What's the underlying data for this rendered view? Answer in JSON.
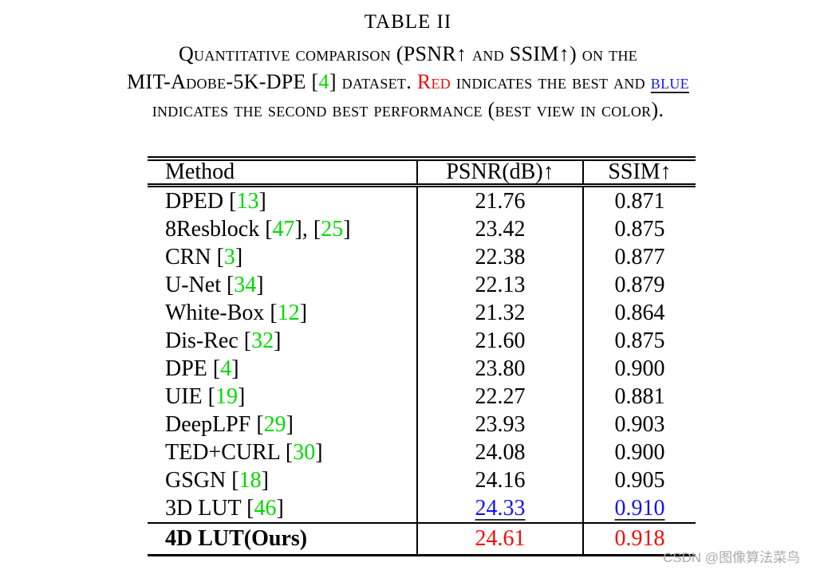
{
  "title": "TABLE II",
  "caption": {
    "lines": [
      [
        {
          "t": "Quantitative comparison (PSNR↑ and SSIM↑) on the"
        }
      ],
      [
        {
          "t": "MIT-Adobe-5K-DPE ["
        },
        {
          "t": "4",
          "s": "green"
        },
        {
          "t": "] dataset. "
        },
        {
          "t": "Red",
          "s": "red"
        },
        {
          "t": " indicates the best and "
        },
        {
          "t": "blue",
          "s": "blue"
        }
      ],
      [
        {
          "t": "indicates the second best performance (best view in color)."
        }
      ]
    ]
  },
  "table": {
    "headers": [
      "Method",
      "PSNR(dB)↑",
      "SSIM↑"
    ],
    "rows": [
      {
        "method": [
          {
            "t": "DPED ["
          },
          {
            "t": "13",
            "s": "cite"
          },
          {
            "t": "]"
          }
        ],
        "psnr": "21.76",
        "ssim": "0.871"
      },
      {
        "method": [
          {
            "t": "8Resblock ["
          },
          {
            "t": "47",
            "s": "cite"
          },
          {
            "t": "], ["
          },
          {
            "t": "25",
            "s": "cite"
          },
          {
            "t": "]"
          }
        ],
        "psnr": "23.42",
        "ssim": "0.875"
      },
      {
        "method": [
          {
            "t": "CRN ["
          },
          {
            "t": "3",
            "s": "cite"
          },
          {
            "t": "]"
          }
        ],
        "psnr": "22.38",
        "ssim": "0.877"
      },
      {
        "method": [
          {
            "t": "U-Net ["
          },
          {
            "t": "34",
            "s": "cite"
          },
          {
            "t": "]"
          }
        ],
        "psnr": "22.13",
        "ssim": "0.879"
      },
      {
        "method": [
          {
            "t": "White-Box ["
          },
          {
            "t": "12",
            "s": "cite"
          },
          {
            "t": "]"
          }
        ],
        "psnr": "21.32",
        "ssim": "0.864"
      },
      {
        "method": [
          {
            "t": "Dis-Rec ["
          },
          {
            "t": "32",
            "s": "cite"
          },
          {
            "t": "]"
          }
        ],
        "psnr": "21.60",
        "ssim": "0.875"
      },
      {
        "method": [
          {
            "t": "DPE ["
          },
          {
            "t": "4",
            "s": "cite"
          },
          {
            "t": "]"
          }
        ],
        "psnr": "23.80",
        "ssim": "0.900"
      },
      {
        "method": [
          {
            "t": "UIE ["
          },
          {
            "t": "19",
            "s": "cite"
          },
          {
            "t": "]"
          }
        ],
        "psnr": "22.27",
        "ssim": "0.881"
      },
      {
        "method": [
          {
            "t": "DeepLPF ["
          },
          {
            "t": "29",
            "s": "cite"
          },
          {
            "t": "]"
          }
        ],
        "psnr": "23.93",
        "ssim": "0.903"
      },
      {
        "method": [
          {
            "t": "TED+CURL ["
          },
          {
            "t": "30",
            "s": "cite"
          },
          {
            "t": "]"
          }
        ],
        "psnr": "24.08",
        "ssim": "0.900"
      },
      {
        "method": [
          {
            "t": "GSGN ["
          },
          {
            "t": "18",
            "s": "cite"
          },
          {
            "t": "]"
          }
        ],
        "psnr": "24.16",
        "ssim": "0.905"
      },
      {
        "method": [
          {
            "t": "3D LUT ["
          },
          {
            "t": "46",
            "s": "cite"
          },
          {
            "t": "]"
          }
        ],
        "psnr": "24.33",
        "ssim": "0.910",
        "value_style": "second"
      },
      {
        "method": [
          {
            "t": "4D LUT(Ours)"
          }
        ],
        "psnr": "24.61",
        "ssim": "0.918",
        "value_style": "best",
        "method_style": "bold",
        "last": true
      }
    ]
  },
  "watermark": "CSDN @图像算法菜鸟",
  "colors": {
    "citation_green": "#00db00",
    "best_red": "#f60909",
    "second_blue": "#1414f0"
  }
}
